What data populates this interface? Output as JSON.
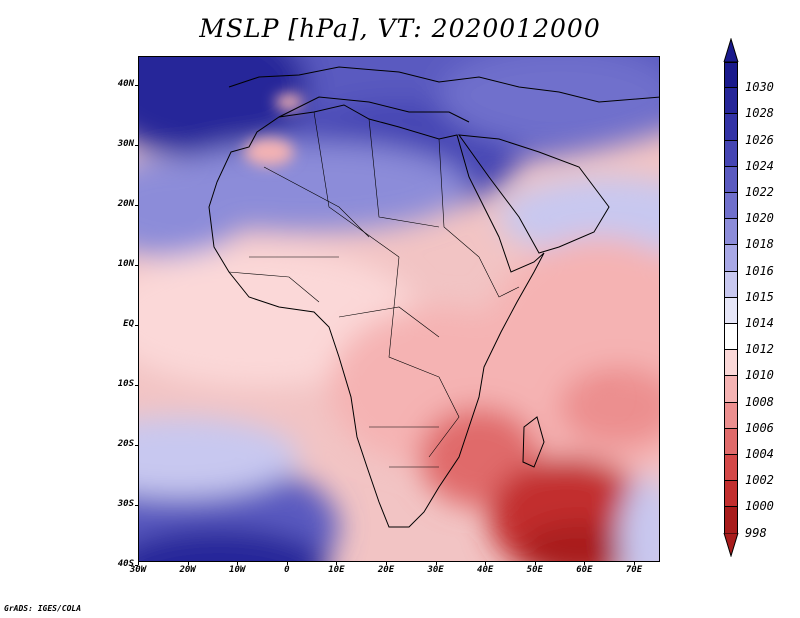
{
  "title": "MSLP [hPa], VT: 2020012000",
  "credit": "GrADS: IGES/COLA",
  "lat_axis": [
    "40N",
    "30N",
    "20N",
    "10N",
    "EQ",
    "10S",
    "20S",
    "30S",
    "40S"
  ],
  "lon_axis": [
    "30W",
    "20W",
    "10W",
    "0",
    "10E",
    "20E",
    "30E",
    "40E",
    "50E",
    "60E",
    "70E"
  ],
  "colorbar": {
    "levels": [
      "1030",
      "1028",
      "1026",
      "1024",
      "1022",
      "1020",
      "1018",
      "1016",
      "1015",
      "1014",
      "1012",
      "1010",
      "1008",
      "1006",
      "1004",
      "1002",
      "1000",
      "998"
    ],
    "colors": [
      "#1a1a8c",
      "#262699",
      "#3333a6",
      "#4545b3",
      "#5a5ac0",
      "#7070cc",
      "#8c8cd9",
      "#a8a8e6",
      "#c8c8f0",
      "#e6e6f8",
      "#ffffff",
      "#fbd8d8",
      "#f5b3b3",
      "#ec8f8f",
      "#e06b6b",
      "#d44848",
      "#c22f2f",
      "#a81c1c"
    ]
  },
  "map": {
    "region": "Africa and surroundings",
    "lon_range": [
      -30,
      75
    ],
    "lat_range": [
      -40,
      45
    ],
    "ocean_base_color": "#f2c4c4"
  }
}
